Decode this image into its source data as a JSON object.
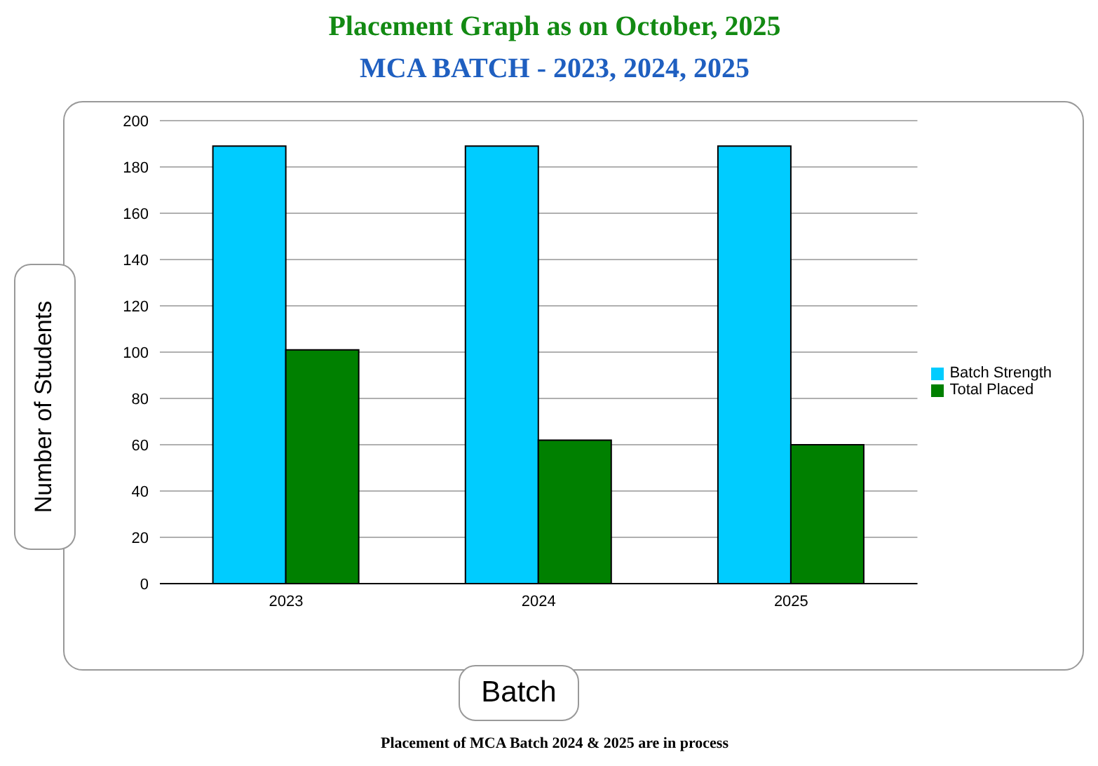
{
  "chart_data": {
    "type": "bar",
    "title": "Placement Graph as on October, 2025",
    "subtitle": "MCA BATCH - 2023, 2024, 2025",
    "xlabel": "Batch",
    "ylabel": "Number of Students",
    "categories": [
      "2023",
      "2024",
      "2025"
    ],
    "series": [
      {
        "name": "Batch Strength",
        "color": "#00ccff",
        "values": [
          189,
          189,
          189
        ]
      },
      {
        "name": "Total Placed",
        "color": "#008000",
        "values": [
          101,
          62,
          60
        ]
      }
    ],
    "ylim": [
      0,
      200
    ],
    "yticks": [
      0,
      20,
      40,
      60,
      80,
      100,
      120,
      140,
      160,
      180,
      200
    ],
    "grid": "y",
    "legend": "right",
    "annotations": [
      "Placement of MCA Batch 2024 & 2025 are in process"
    ]
  }
}
